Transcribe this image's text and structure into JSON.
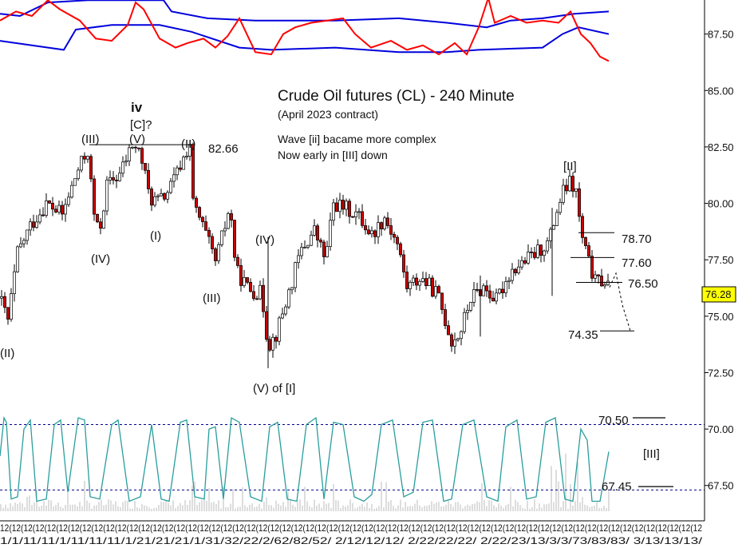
{
  "chart_data": {
    "type": "candlestick",
    "title": "Crude Oil futures (CL) - 240 Minute",
    "subtitle": "(April 2023 contract)",
    "notes": [
      "Wave [ii] bacame more complex",
      "Now early in [III] down"
    ],
    "ylim": [
      66.5,
      90
    ],
    "yticks": [
      "87.50",
      "85.00",
      "82.50",
      "80.00",
      "77.50",
      "75.00",
      "72.50",
      "70.00",
      "67.50"
    ],
    "last_price": "76.28",
    "colors": {
      "up": "#ffffff",
      "down": "#cc0000",
      "wick": "#000000",
      "band": "#0000dd",
      "oscillator": "#ff0000",
      "stochastic": "#2a9d9d",
      "volume": "#bbbbbb",
      "level_line": "#000000",
      "dotted_level": "#00008b"
    },
    "price_path": [
      [
        0,
        75.8
      ],
      [
        10,
        74.8
      ],
      [
        22,
        77.8
      ],
      [
        38,
        79.0
      ],
      [
        58,
        80.0
      ],
      [
        78,
        79.5
      ],
      [
        98,
        81.5
      ],
      [
        110,
        82.3
      ],
      [
        118,
        79.5
      ],
      [
        124,
        78.6
      ],
      [
        134,
        80.8
      ],
      [
        150,
        81.3
      ],
      [
        166,
        82.6
      ],
      [
        176,
        82.2
      ],
      [
        188,
        80.2
      ],
      [
        200,
        80.1
      ],
      [
        212,
        80.6
      ],
      [
        224,
        81.5
      ],
      [
        238,
        82.66
      ],
      [
        242,
        80.0
      ],
      [
        256,
        78.8
      ],
      [
        270,
        77.4
      ],
      [
        282,
        79.0
      ],
      [
        288,
        79.9
      ],
      [
        296,
        77.0
      ],
      [
        312,
        76.2
      ],
      [
        328,
        76.0
      ],
      [
        336,
        73.7
      ],
      [
        346,
        74.2
      ],
      [
        360,
        75.8
      ],
      [
        376,
        77.8
      ],
      [
        394,
        78.8
      ],
      [
        408,
        77.5
      ],
      [
        418,
        80.0
      ],
      [
        432,
        79.8
      ],
      [
        448,
        79.5
      ],
      [
        466,
        78.6
      ],
      [
        482,
        79.4
      ],
      [
        498,
        78.2
      ],
      [
        510,
        76.3
      ],
      [
        528,
        76.7
      ],
      [
        548,
        76.0
      ],
      [
        566,
        73.9
      ],
      [
        576,
        74.2
      ],
      [
        590,
        75.8
      ],
      [
        606,
        76.3
      ],
      [
        622,
        75.7
      ],
      [
        640,
        77.0
      ],
      [
        656,
        77.4
      ],
      [
        672,
        77.8
      ],
      [
        688,
        78.3
      ],
      [
        698,
        79.7
      ],
      [
        706,
        80.5
      ],
      [
        714,
        80.9
      ],
      [
        722,
        80.5
      ],
      [
        728,
        78.7
      ],
      [
        736,
        77.6
      ],
      [
        746,
        76.5
      ],
      [
        756,
        76.6
      ],
      [
        764,
        76.28
      ]
    ],
    "projection": [
      [
        764,
        76.28
      ],
      [
        772,
        76.9
      ],
      [
        780,
        75.5
      ],
      [
        790,
        74.35
      ]
    ],
    "band_upper": [
      [
        0,
        88.4
      ],
      [
        25,
        88.3
      ],
      [
        60,
        88.9
      ],
      [
        110,
        89.0
      ],
      [
        170,
        89.0
      ],
      [
        205,
        89.0
      ],
      [
        215,
        88.5
      ],
      [
        260,
        88.2
      ],
      [
        320,
        88.1
      ],
      [
        420,
        88.1
      ],
      [
        500,
        88.2
      ],
      [
        560,
        88.0
      ],
      [
        610,
        87.8
      ],
      [
        640,
        88.1
      ],
      [
        680,
        88.2
      ],
      [
        720,
        88.4
      ],
      [
        763,
        88.5
      ]
    ],
    "band_lower": [
      [
        0,
        87.2
      ],
      [
        40,
        87.0
      ],
      [
        80,
        86.8
      ],
      [
        95,
        87.7
      ],
      [
        140,
        87.9
      ],
      [
        200,
        87.9
      ],
      [
        240,
        87.6
      ],
      [
        300,
        86.9
      ],
      [
        340,
        86.8
      ],
      [
        420,
        86.9
      ],
      [
        500,
        86.7
      ],
      [
        560,
        86.7
      ],
      [
        600,
        86.8
      ],
      [
        680,
        86.9
      ],
      [
        705,
        87.5
      ],
      [
        725,
        87.8
      ],
      [
        763,
        87.5
      ]
    ],
    "oscillator": [
      [
        0,
        88.1
      ],
      [
        20,
        88.5
      ],
      [
        40,
        88.3
      ],
      [
        60,
        89.0
      ],
      [
        75,
        88.6
      ],
      [
        100,
        88.1
      ],
      [
        120,
        87.3
      ],
      [
        140,
        87.2
      ],
      [
        160,
        87.9
      ],
      [
        170,
        88.9
      ],
      [
        180,
        88.6
      ],
      [
        200,
        87.3
      ],
      [
        220,
        86.9
      ],
      [
        235,
        87.1
      ],
      [
        255,
        87.3
      ],
      [
        270,
        86.9
      ],
      [
        285,
        87.4
      ],
      [
        300,
        88.2
      ],
      [
        320,
        86.7
      ],
      [
        340,
        86.6
      ],
      [
        355,
        87.5
      ],
      [
        370,
        87.8
      ],
      [
        390,
        88.0
      ],
      [
        410,
        88.1
      ],
      [
        430,
        88.2
      ],
      [
        445,
        87.5
      ],
      [
        465,
        86.9
      ],
      [
        490,
        87.2
      ],
      [
        510,
        86.8
      ],
      [
        530,
        87.0
      ],
      [
        550,
        86.6
      ],
      [
        570,
        87.1
      ],
      [
        585,
        86.6
      ],
      [
        600,
        87.8
      ],
      [
        612,
        89.1
      ],
      [
        620,
        88.0
      ],
      [
        640,
        88.3
      ],
      [
        660,
        88.0
      ],
      [
        680,
        88.1
      ],
      [
        700,
        88.0
      ],
      [
        715,
        88.5
      ],
      [
        728,
        87.5
      ],
      [
        740,
        87.1
      ],
      [
        752,
        86.5
      ],
      [
        763,
        86.3
      ]
    ],
    "stochastic": [
      [
        0,
        68.8
      ],
      [
        5,
        70.5
      ],
      [
        8,
        70.3
      ],
      [
        14,
        66.9
      ],
      [
        22,
        67.0
      ],
      [
        30,
        70.0
      ],
      [
        38,
        70.4
      ],
      [
        46,
        66.8
      ],
      [
        58,
        66.9
      ],
      [
        68,
        70.2
      ],
      [
        76,
        70.4
      ],
      [
        85,
        67.2
      ],
      [
        98,
        70.5
      ],
      [
        106,
        70.4
      ],
      [
        113,
        67.0
      ],
      [
        125,
        66.9
      ],
      [
        140,
        70.2
      ],
      [
        148,
        70.4
      ],
      [
        162,
        66.8
      ],
      [
        176,
        67.0
      ],
      [
        190,
        70.2
      ],
      [
        202,
        66.9
      ],
      [
        212,
        66.8
      ],
      [
        226,
        70.3
      ],
      [
        234,
        70.4
      ],
      [
        244,
        67.0
      ],
      [
        256,
        66.9
      ],
      [
        262,
        70.0
      ],
      [
        270,
        70.1
      ],
      [
        280,
        66.9
      ],
      [
        290,
        70.5
      ],
      [
        300,
        70.3
      ],
      [
        314,
        67.0
      ],
      [
        328,
        66.8
      ],
      [
        338,
        70.1
      ],
      [
        348,
        70.3
      ],
      [
        360,
        66.9
      ],
      [
        372,
        66.8
      ],
      [
        384,
        70.2
      ],
      [
        396,
        70.5
      ],
      [
        406,
        66.9
      ],
      [
        418,
        70.3
      ],
      [
        430,
        70.2
      ],
      [
        444,
        67.0
      ],
      [
        456,
        66.8
      ],
      [
        466,
        67.1
      ],
      [
        478,
        70.2
      ],
      [
        492,
        70.4
      ],
      [
        506,
        67.0
      ],
      [
        518,
        67.2
      ],
      [
        530,
        70.3
      ],
      [
        542,
        70.4
      ],
      [
        556,
        66.8
      ],
      [
        566,
        66.9
      ],
      [
        580,
        70.2
      ],
      [
        594,
        70.4
      ],
      [
        610,
        67.0
      ],
      [
        624,
        66.8
      ],
      [
        634,
        70.1
      ],
      [
        648,
        70.4
      ],
      [
        660,
        66.9
      ],
      [
        672,
        67.0
      ],
      [
        684,
        70.3
      ],
      [
        696,
        70.5
      ],
      [
        708,
        66.9
      ],
      [
        718,
        66.8
      ],
      [
        728,
        70.0
      ],
      [
        736,
        69.5
      ],
      [
        742,
        66.8
      ],
      [
        752,
        66.8
      ],
      [
        763,
        69.0
      ]
    ],
    "oversold_line": 67.3,
    "overbought_line": 70.2,
    "wave_labels": {
      "ii_left": "(II)",
      "iii_1": "(III)",
      "v_1": "(V)",
      "ii_1": "(II)",
      "iv_main": "iv",
      "c_main": "[C]?",
      "high_val": "82.66",
      "iv_1": "(IV)",
      "i_1": "(I)",
      "iii_2": "(III)",
      "iv_2": "(IV)",
      "v_of_i": "(V) of [I]",
      "ii_main": "[II]",
      "iii_main": "[III]"
    },
    "levels": {
      "l7870": "78.70",
      "l7760": "77.60",
      "l7650": "76.50",
      "l7435": "74.35",
      "l7050": "70.50",
      "l6745": "67.45"
    },
    "xaxis_labels_row1": "12(12(12(12(12(12(12(12(12(12(12(12(12(12(12(12(12(12(12(12(12(12(12(12(12(12(12(12(12(12(12(12(12(12(12(12(12(12(12(12(12(12(12(12(12(12(12(12(12(12(12(12(12(12(12(12(12(12(12(12",
    "xaxis_labels_row2": "1/1/11/11/1/11/11/11/1/21/21/21/1/31/32/22/2/62/82/52/ 2/12/12/12/ 2/22/22/22/ 2/22/23/13/3/3/73/83/83/ 3/13/13/13/"
  }
}
